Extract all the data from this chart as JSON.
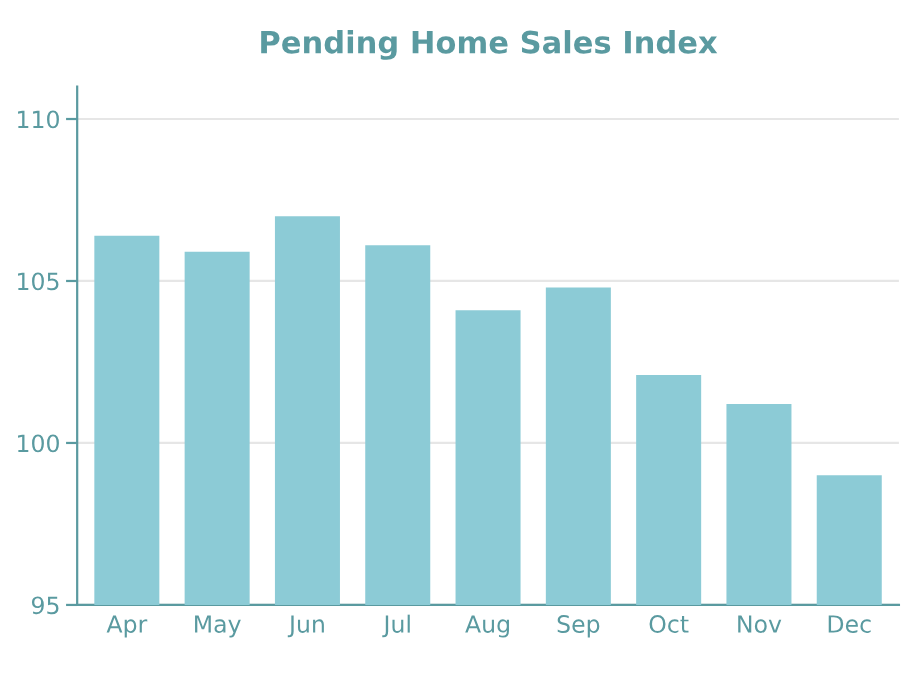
{
  "chart_data": {
    "type": "bar",
    "title": "Pending Home Sales Index",
    "categories": [
      "Apr",
      "May",
      "Jun",
      "Jul",
      "Aug",
      "Sep",
      "Oct",
      "Nov",
      "Dec"
    ],
    "values": [
      106.4,
      105.9,
      107.0,
      106.1,
      104.1,
      104.8,
      102.1,
      101.2,
      99.0
    ],
    "color": "#8ccbd6",
    "ylim": [
      95,
      111
    ],
    "yticks": [
      95,
      100,
      105,
      110
    ],
    "grid": "y",
    "legend": false
  }
}
